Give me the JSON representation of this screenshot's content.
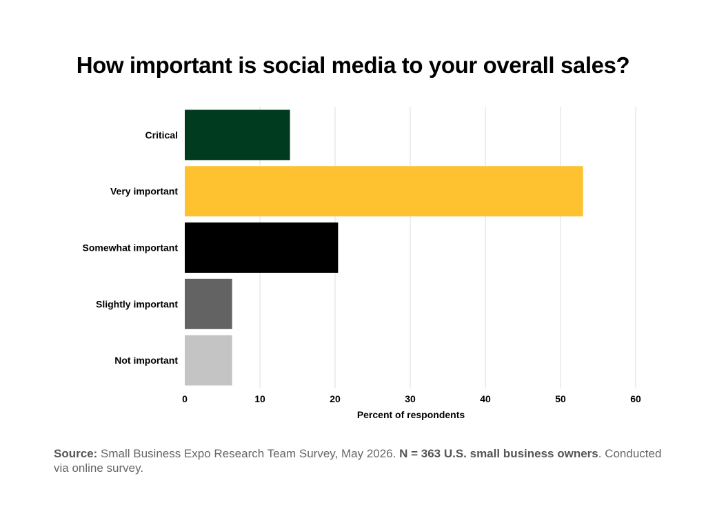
{
  "title": "How important is social media to your overall sales?",
  "chart_data": {
    "type": "bar",
    "orientation": "horizontal",
    "title": "How important is social media to your overall sales?",
    "categories": [
      "Critical",
      "Very important",
      "Somewhat important",
      "Slightly important",
      "Not important"
    ],
    "values": [
      14,
      53,
      20.4,
      6.3,
      6.3
    ],
    "colors": [
      "#003a1f",
      "#fec231",
      "#000000",
      "#636363",
      "#c4c4c4"
    ],
    "xlabel": "Percent of respondents",
    "ylabel": "",
    "xlim": [
      0,
      60
    ],
    "xticks": [
      0,
      10,
      20,
      30,
      40,
      50,
      60
    ],
    "grid": true,
    "legend": "none"
  },
  "source": {
    "label": "Source:",
    "text": " Small Business Expo Research Team Survey, May 2026. ",
    "sample": "N = 363 U.S. small business owners",
    "tail": ". Conducted via online survey."
  }
}
